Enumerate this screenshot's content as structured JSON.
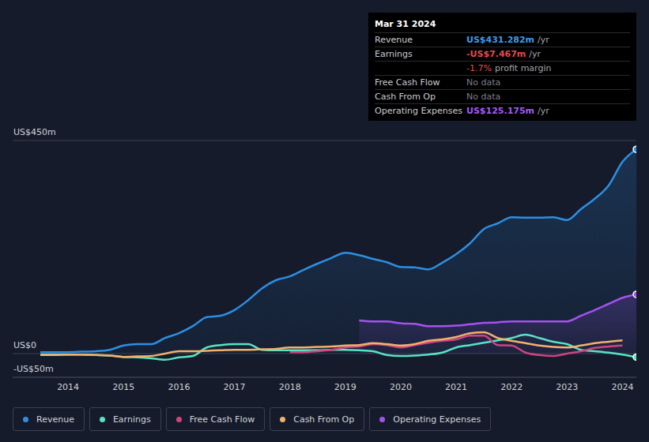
{
  "chart_data": {
    "type": "line",
    "x": [
      2013.5,
      2013.75,
      2014,
      2014.25,
      2014.5,
      2014.75,
      2015,
      2015.25,
      2015.5,
      2015.75,
      2016,
      2016.25,
      2016.5,
      2016.75,
      2017,
      2017.25,
      2017.5,
      2017.75,
      2018,
      2018.25,
      2018.5,
      2018.75,
      2019,
      2019.25,
      2019.5,
      2019.75,
      2020,
      2020.25,
      2020.5,
      2020.75,
      2021,
      2021.25,
      2021.5,
      2021.75,
      2022,
      2022.25,
      2022.5,
      2022.75,
      2023,
      2023.25,
      2023.5,
      2023.75,
      2024,
      2024.25
    ],
    "series": [
      {
        "name": "Revenue",
        "color": "#2d8fe3",
        "type": "area",
        "values": [
          3,
          3,
          3,
          4,
          5,
          8,
          17,
          20,
          20,
          33,
          43,
          58,
          77,
          80,
          92,
          113,
          138,
          155,
          163,
          177,
          190,
          202,
          213,
          208,
          200,
          193,
          183,
          182,
          178,
          192,
          210,
          233,
          263,
          275,
          288,
          287,
          287,
          288,
          282,
          305,
          327,
          355,
          405,
          431.282
        ]
      },
      {
        "name": "Earnings",
        "color": "#58e3c4",
        "type": "line",
        "values": [
          -2,
          -2,
          -2,
          -2,
          -3,
          -4,
          -7,
          -8,
          -10,
          -13,
          -8,
          -5,
          13,
          18,
          20,
          20,
          8,
          7,
          7,
          7,
          7,
          8,
          8,
          7,
          5,
          -3,
          -5,
          -4,
          -2,
          2,
          13,
          18,
          23,
          28,
          33,
          40,
          33,
          25,
          20,
          8,
          5,
          2,
          -2,
          -7.467
        ]
      },
      {
        "name": "Free Cash Flow",
        "color": "#d0437e",
        "type": "line",
        "values": [
          null,
          null,
          null,
          null,
          null,
          null,
          null,
          null,
          null,
          null,
          null,
          null,
          null,
          null,
          null,
          null,
          null,
          null,
          3,
          3,
          5,
          8,
          13,
          15,
          20,
          18,
          13,
          18,
          23,
          27,
          30,
          38,
          38,
          18,
          17,
          2,
          -3,
          -5,
          0,
          5,
          12,
          15,
          17,
          null
        ]
      },
      {
        "name": "Cash From Op",
        "color": "#f1b26c",
        "type": "line",
        "values": [
          -3,
          -3,
          -2,
          -2,
          -3,
          -4,
          -7,
          -6,
          -5,
          0,
          5,
          5,
          6,
          7,
          8,
          8,
          9,
          10,
          13,
          13,
          14,
          15,
          17,
          18,
          22,
          20,
          17,
          20,
          27,
          30,
          35,
          43,
          45,
          33,
          27,
          22,
          17,
          14,
          13,
          17,
          22,
          25,
          28,
          null
        ]
      },
      {
        "name": "Operating Expenses",
        "color": "#a352f2",
        "type": "area",
        "values": [
          null,
          null,
          null,
          null,
          null,
          null,
          null,
          null,
          null,
          null,
          null,
          null,
          null,
          null,
          null,
          null,
          null,
          null,
          null,
          null,
          null,
          null,
          null,
          70,
          68,
          68,
          64,
          63,
          58,
          58,
          59,
          62,
          65,
          66,
          68,
          68,
          68,
          68,
          68,
          80,
          92,
          105,
          118,
          125.175
        ]
      }
    ],
    "xlim": [
      2013,
      2024.25
    ],
    "xticks": [
      2014,
      2015,
      2016,
      2017,
      2018,
      2019,
      2020,
      2021,
      2022,
      2023,
      2024
    ],
    "ylim": [
      -50,
      450
    ],
    "yticks": [
      {
        "value": -50,
        "label": "-US$50m"
      },
      {
        "value": 0,
        "label": "US$0"
      },
      {
        "value": 450,
        "label": "US$450m"
      }
    ],
    "grid": true,
    "info_box": {
      "title": "Mar 31 2024",
      "rows": [
        {
          "label": "Revenue",
          "value": "US$431.282m",
          "unit": "/yr",
          "color": "#3d9be9"
        },
        {
          "label": "Earnings",
          "value": "-US$7.467m",
          "unit": "/yr",
          "color": "#e5484d"
        },
        {
          "value": "-1.7%",
          "unit": "profit margin",
          "color": "#e5484d"
        },
        {
          "label": "Free Cash Flow",
          "value": "No data",
          "color": "#7a7f8a"
        },
        {
          "label": "Cash From Op",
          "value": "No data",
          "color": "#7a7f8a"
        },
        {
          "label": "Operating Expenses",
          "value": "US$125.175m",
          "unit": "/yr",
          "color": "#a35bf5"
        }
      ]
    }
  }
}
